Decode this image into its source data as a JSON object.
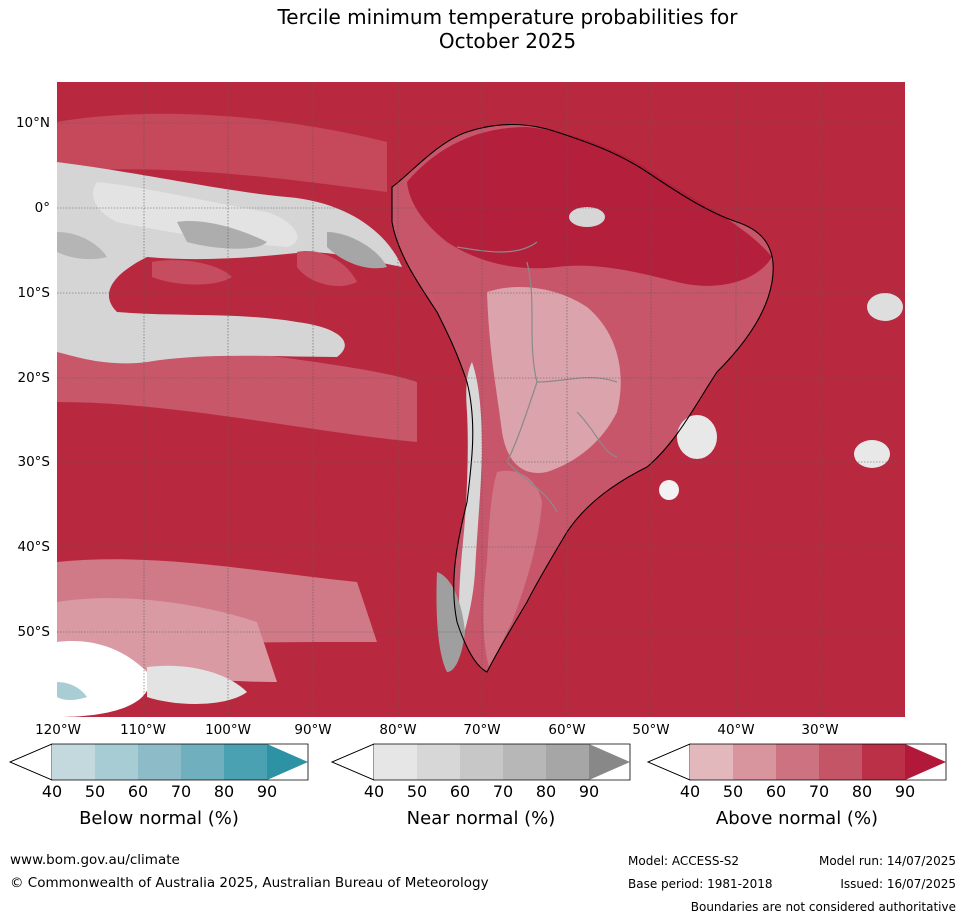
{
  "title_line1": "Tercile minimum temperature probabilities for",
  "title_line2": "October 2025",
  "lat_labels": [
    "10°N",
    "0°",
    "10°S",
    "20°S",
    "30°S",
    "40°S",
    "50°S"
  ],
  "lon_labels": [
    "120°W",
    "110°W",
    "100°W",
    "90°W",
    "80°W",
    "70°W",
    "60°W",
    "50°W",
    "40°W",
    "30°W"
  ],
  "legend": {
    "below": {
      "title": "Below normal (%)",
      "ticks": [
        "40",
        "50",
        "60",
        "70",
        "80",
        "90"
      ],
      "colors": [
        "#c3d9de",
        "#a8ccd3",
        "#8dbcc8",
        "#70afbd",
        "#4aa1b1",
        "#2e92a5"
      ]
    },
    "near": {
      "title": "Near normal (%)",
      "ticks": [
        "40",
        "50",
        "60",
        "70",
        "80",
        "90"
      ],
      "colors": [
        "#e6e6e6",
        "#d7d7d7",
        "#c7c7c7",
        "#b7b7b7",
        "#a6a6a6",
        "#888888"
      ]
    },
    "above": {
      "title": "Above normal (%)",
      "ticks": [
        "40",
        "50",
        "60",
        "70",
        "80",
        "90"
      ],
      "colors": [
        "#e2b8bd",
        "#d9959e",
        "#cd7280",
        "#c35566",
        "#bb3047",
        "#b2183a"
      ]
    }
  },
  "footer": {
    "website": "www.bom.gov.au/climate",
    "copyright": "© Commonwealth of Australia 2025, Australian Bureau of Meteorology",
    "model": "Model: ACCESS-S2",
    "model_run": "Model run: 14/07/2025",
    "base_period": "Base period: 1981-2018",
    "issued": "Issued: 16/07/2025",
    "disclaimer": "Boundaries are not considered authoritative"
  }
}
